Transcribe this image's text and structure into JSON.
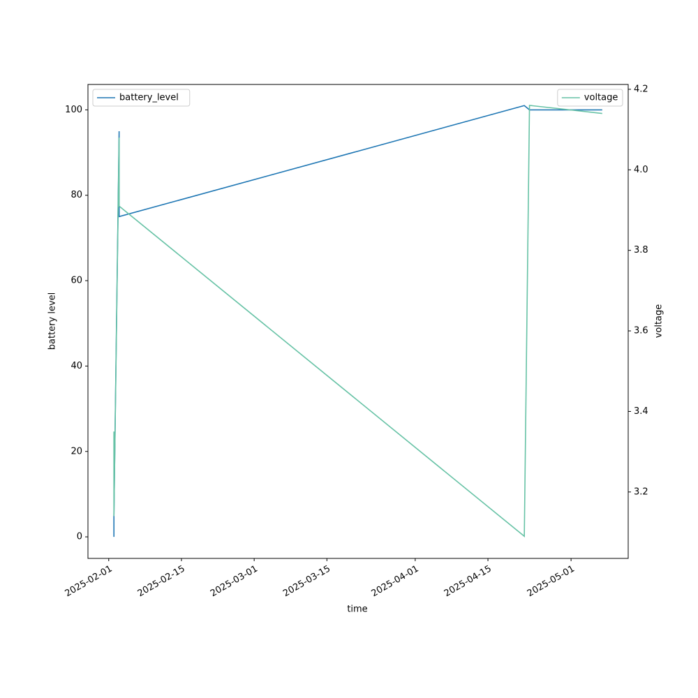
{
  "chart_data": {
    "type": "line",
    "xlabel": "time",
    "ylabel": "battery level",
    "y2label": "voltage",
    "xlim": [
      "2025-01-28",
      "2025-05-12"
    ],
    "xticks": [
      "2025-02-01",
      "2025-02-15",
      "2025-03-01",
      "2025-03-15",
      "2025-04-01",
      "2025-04-15",
      "2025-05-01"
    ],
    "ylim": [
      -5.05,
      105.95
    ],
    "yticks": [
      0,
      20,
      40,
      60,
      80,
      100
    ],
    "y2lim": [
      3.035,
      4.212
    ],
    "y2ticks": [
      3.2,
      3.4,
      3.6,
      3.8,
      {
        "value": 4,
        "label": "4.0"
      },
      4.2
    ],
    "grid": false,
    "series": [
      {
        "name": "battery_level",
        "color": "#1f77b4",
        "legend": "upper left",
        "x": [
          "2025-02-02",
          "2025-02-02",
          "2025-02-02",
          "2025-02-03",
          "2025-02-03",
          "2025-04-22",
          "2025-04-23",
          "2025-05-07"
        ],
        "values": [
          1,
          0,
          5,
          95,
          75,
          101,
          100,
          100
        ]
      },
      {
        "name": "voltage",
        "color": "#66c2a5",
        "axis": "y2",
        "legend": "upper right",
        "x": [
          "2025-02-02",
          "2025-02-02",
          "2025-02-03",
          "2025-02-03",
          "2025-04-22",
          "2025-04-23",
          "2025-04-30",
          "2025-05-07"
        ],
        "values": [
          3.35,
          3.14,
          4.08,
          3.91,
          3.09,
          4.16,
          4.15,
          4.14
        ]
      }
    ]
  }
}
